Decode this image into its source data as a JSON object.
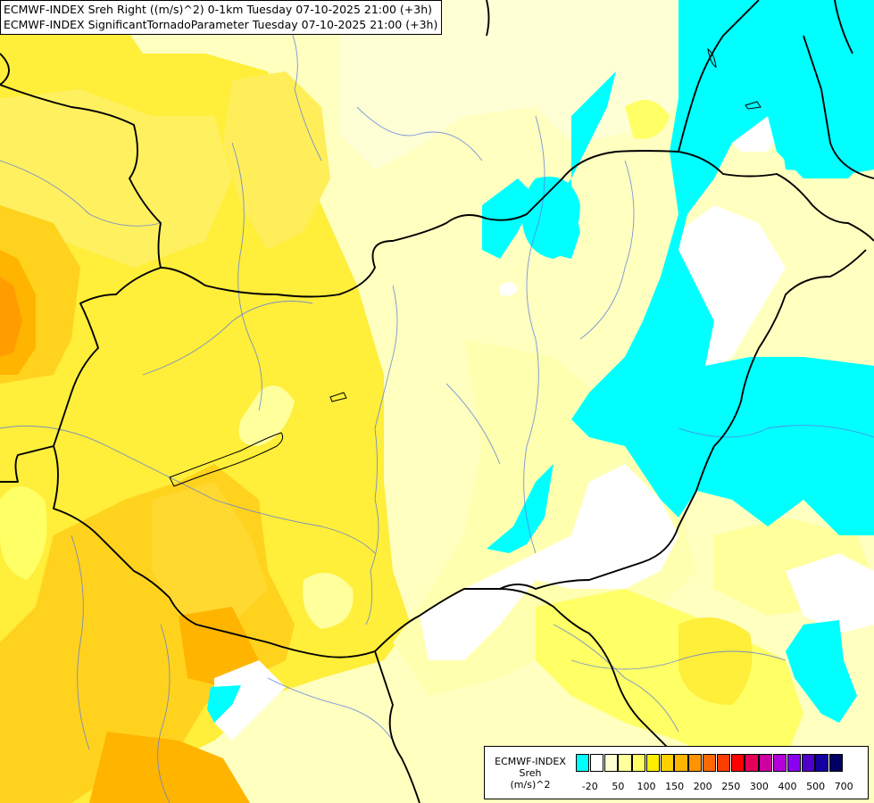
{
  "header": {
    "line1": "ECMWF-INDEX Sreh Right ((m/s)^2) 0-1km Tuesday 07-10-2025 21:00 (+3h)",
    "line2": "ECMWF-INDEX SignificantTornadoParameter Tuesday 07-10-2025 21:00 (+3h)"
  },
  "legend": {
    "title_lines": [
      "ECMWF-INDEX",
      "Sreh",
      "(m/s)^2"
    ],
    "colors": [
      "#00ffff",
      "#ffffff",
      "#ffffd0",
      "#ffff9c",
      "#ffff66",
      "#ffee00",
      "#ffd000",
      "#ffb400",
      "#ff9400",
      "#ff6800",
      "#ff3c00",
      "#ff0000",
      "#e6005a",
      "#cc00a0",
      "#b400d8",
      "#8c00f0",
      "#5000c8",
      "#1400a0",
      "#000064"
    ],
    "ticks": [
      {
        "label": "-20",
        "idx": 1
      },
      {
        "label": "50",
        "idx": 3
      },
      {
        "label": "100",
        "idx": 5
      },
      {
        "label": "150",
        "idx": 7
      },
      {
        "label": "200",
        "idx": 9
      },
      {
        "label": "250",
        "idx": 11
      },
      {
        "label": "300",
        "idx": 13
      },
      {
        "label": "400",
        "idx": 15
      },
      {
        "label": "500",
        "idx": 17
      },
      {
        "label": "700",
        "idx": 19
      }
    ]
  }
}
